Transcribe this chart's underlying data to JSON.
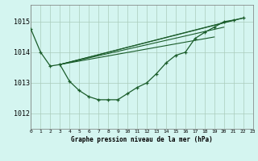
{
  "title": "Graphe pression niveau de la mer (hPa)",
  "bg_color": "#d4f5f0",
  "grid_color": "#aaccbb",
  "line_color": "#1a5c2a",
  "xlim": [
    0,
    23
  ],
  "ylim": [
    1011.5,
    1015.55
  ],
  "yticks": [
    1012,
    1013,
    1014,
    1015
  ],
  "xticks": [
    0,
    1,
    2,
    3,
    4,
    5,
    6,
    7,
    8,
    9,
    10,
    11,
    12,
    13,
    14,
    15,
    16,
    17,
    18,
    19,
    20,
    21,
    22,
    23
  ],
  "main_x": [
    0,
    1,
    2,
    3,
    4,
    5,
    6,
    7,
    8,
    9,
    10,
    11,
    12,
    13,
    14,
    15,
    16,
    17,
    18,
    19,
    20,
    21,
    22
  ],
  "main_y": [
    1014.75,
    1014.0,
    1013.55,
    1013.6,
    1013.05,
    1012.75,
    1012.55,
    1012.45,
    1012.45,
    1012.45,
    1012.65,
    1012.85,
    1013.0,
    1013.3,
    1013.65,
    1013.9,
    1014.0,
    1014.45,
    1014.65,
    1014.82,
    1015.0,
    1015.05,
    1015.12
  ],
  "band_lines": [
    {
      "x": [
        3,
        22
      ],
      "y": [
        1013.6,
        1015.12
      ]
    },
    {
      "x": [
        3,
        21
      ],
      "y": [
        1013.6,
        1015.05
      ]
    },
    {
      "x": [
        3,
        20
      ],
      "y": [
        1013.6,
        1014.82
      ]
    },
    {
      "x": [
        3,
        19
      ],
      "y": [
        1013.6,
        1014.5
      ]
    }
  ]
}
